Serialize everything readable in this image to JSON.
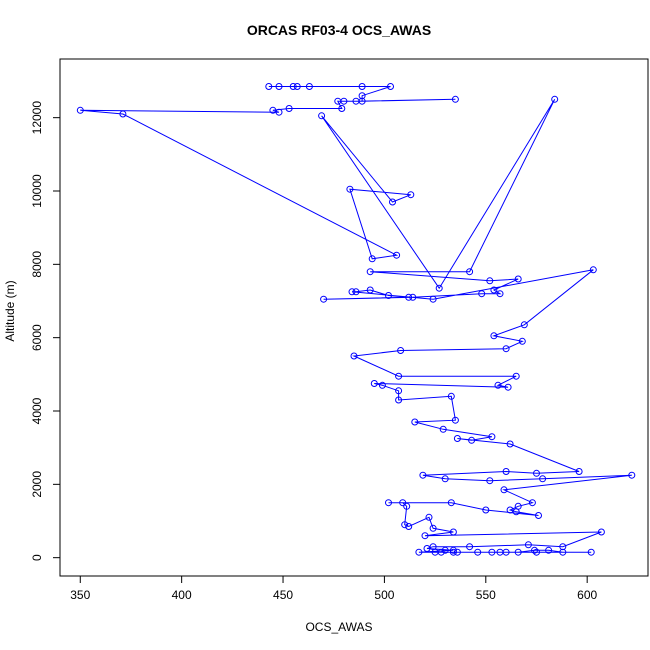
{
  "chart_data": {
    "type": "line",
    "title": "ORCAS RF03-4 OCS_AWAS",
    "xlabel": "OCS_AWAS",
    "ylabel": "Altitude (m)",
    "xlim": [
      340,
      630
    ],
    "ylim": [
      -500,
      13600
    ],
    "xticks": [
      350,
      400,
      450,
      500,
      550,
      600
    ],
    "yticks": [
      0,
      2000,
      4000,
      6000,
      8000,
      10000,
      12000
    ],
    "grid": false,
    "legend": "none",
    "series": [
      {
        "color": "#0000ff",
        "marker": "open-circle",
        "points": [
          [
            443,
            12850
          ],
          [
            448,
            12850
          ],
          [
            455,
            12850
          ],
          [
            457,
            12850
          ],
          [
            463,
            12850
          ],
          [
            489,
            12850
          ],
          [
            503,
            12850
          ],
          [
            489,
            12600
          ],
          [
            489,
            12450
          ],
          [
            535,
            12500
          ],
          [
            486,
            12450
          ],
          [
            480,
            12450
          ],
          [
            477,
            12450
          ],
          [
            479,
            12250
          ],
          [
            453,
            12250
          ],
          [
            445,
            12200
          ],
          [
            448,
            12150
          ],
          [
            350,
            12200
          ],
          [
            371,
            12100
          ],
          [
            506,
            8250
          ],
          [
            494,
            8150
          ],
          [
            483,
            10050
          ],
          [
            513,
            9900
          ],
          [
            504,
            9700
          ],
          [
            469,
            12050
          ],
          [
            527,
            7350
          ],
          [
            584,
            12500
          ],
          [
            542,
            7800
          ],
          [
            493,
            7800
          ],
          [
            552,
            7550
          ],
          [
            566,
            7600
          ],
          [
            554,
            7300
          ],
          [
            557,
            7200
          ],
          [
            548,
            7200
          ],
          [
            514,
            7100
          ],
          [
            470,
            7050
          ],
          [
            512,
            7100
          ],
          [
            502,
            7150
          ],
          [
            493,
            7300
          ],
          [
            486,
            7250
          ],
          [
            484,
            7250
          ],
          [
            524,
            7050
          ],
          [
            603,
            7850
          ],
          [
            569,
            6350
          ],
          [
            554,
            6050
          ],
          [
            568,
            5900
          ],
          [
            560,
            5700
          ],
          [
            508,
            5650
          ],
          [
            485,
            5500
          ],
          [
            507,
            4950
          ],
          [
            565,
            4950
          ],
          [
            556,
            4700
          ],
          [
            561,
            4650
          ],
          [
            495,
            4750
          ],
          [
            499,
            4700
          ],
          [
            507,
            4550
          ],
          [
            507,
            4300
          ],
          [
            533,
            4400
          ],
          [
            535,
            3750
          ],
          [
            515,
            3700
          ],
          [
            529,
            3500
          ],
          [
            553,
            3300
          ],
          [
            543,
            3200
          ],
          [
            536,
            3250
          ],
          [
            562,
            3100
          ],
          [
            596,
            2350
          ],
          [
            575,
            2300
          ],
          [
            560,
            2350
          ],
          [
            519,
            2250
          ],
          [
            530,
            2150
          ],
          [
            552,
            2100
          ],
          [
            578,
            2150
          ],
          [
            622,
            2250
          ],
          [
            559,
            1850
          ],
          [
            573,
            1500
          ],
          [
            566,
            1400
          ],
          [
            562,
            1300
          ],
          [
            565,
            1250
          ],
          [
            576,
            1150
          ],
          [
            550,
            1300
          ],
          [
            533,
            1500
          ],
          [
            502,
            1500
          ],
          [
            509,
            1500
          ],
          [
            511,
            1400
          ],
          [
            510,
            900
          ],
          [
            512,
            850
          ],
          [
            522,
            1100
          ],
          [
            524,
            800
          ],
          [
            534,
            700
          ],
          [
            520,
            600
          ],
          [
            607,
            700
          ],
          [
            588,
            300
          ],
          [
            571,
            350
          ],
          [
            542,
            300
          ],
          [
            524,
            300
          ],
          [
            521,
            250
          ],
          [
            534,
            200
          ],
          [
            517,
            150
          ],
          [
            525,
            150
          ],
          [
            536,
            150
          ],
          [
            546,
            150
          ],
          [
            553,
            150
          ],
          [
            560,
            150
          ],
          [
            566,
            150
          ],
          [
            574,
            200
          ],
          [
            581,
            200
          ],
          [
            588,
            150
          ],
          [
            602,
            150
          ],
          [
            575,
            150
          ],
          [
            557,
            150
          ],
          [
            534,
            150
          ],
          [
            528,
            150
          ],
          [
            530,
            200
          ]
        ]
      }
    ]
  }
}
